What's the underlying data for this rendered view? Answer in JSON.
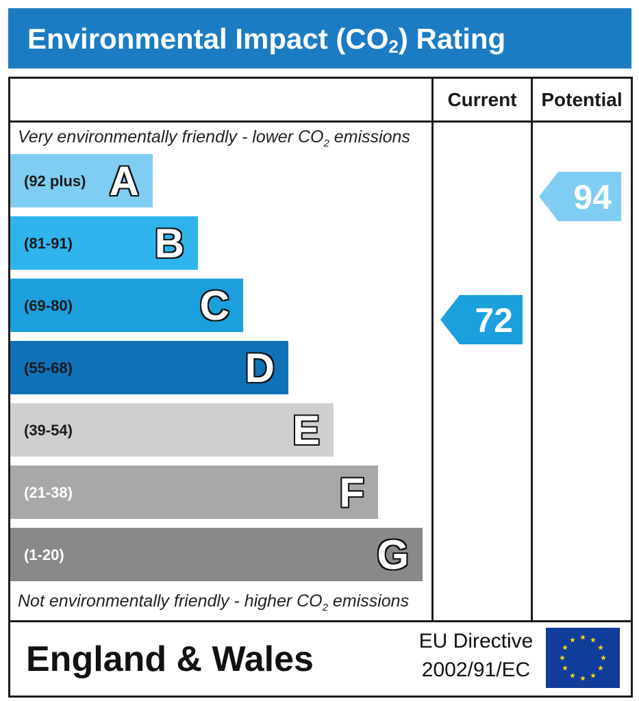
{
  "title": {
    "text_before": "Environmental Impact (CO",
    "subscript": "2",
    "text_after": ") Rating"
  },
  "columns": {
    "current": "Current",
    "potential": "Potential"
  },
  "notes": {
    "top_before": "Very environmentally friendly - lower CO",
    "top_sub": "2",
    "top_after": " emissions",
    "bottom_before": "Not environmentally friendly - higher CO",
    "bottom_sub": "2",
    "bottom_after": " emissions"
  },
  "bands": [
    {
      "letter": "A",
      "range": "(92 plus)",
      "color": "#7fcdf2",
      "text_color": "#1a1a1a"
    },
    {
      "letter": "B",
      "range": "(81-91)",
      "color": "#2fb4ee",
      "text_color": "#1a1a1a"
    },
    {
      "letter": "C",
      "range": "(69-80)",
      "color": "#1b9fdd",
      "text_color": "#1a1a1a"
    },
    {
      "letter": "D",
      "range": "(55-68)",
      "color": "#0f72b9",
      "text_color": "#1a1a1a"
    },
    {
      "letter": "E",
      "range": "(39-54)",
      "color": "#cfcfcf",
      "text_color": "#1a1a1a"
    },
    {
      "letter": "F",
      "range": "(21-38)",
      "color": "#a8a8a8",
      "text_color": "#ffffff"
    },
    {
      "letter": "G",
      "range": "(1-20)",
      "color": "#898989",
      "text_color": "#ffffff"
    }
  ],
  "ratings": {
    "current": {
      "value": "72",
      "band": "C",
      "color": "#1b9fdd"
    },
    "potential": {
      "value": "94",
      "band": "A",
      "color": "#7fcdf2"
    }
  },
  "footer": {
    "region": "England & Wales",
    "directive_line1": "EU Directive",
    "directive_line2": "2002/91/EC",
    "flag_colors": {
      "field": "#103c9a",
      "stars": "#f7d117"
    }
  }
}
